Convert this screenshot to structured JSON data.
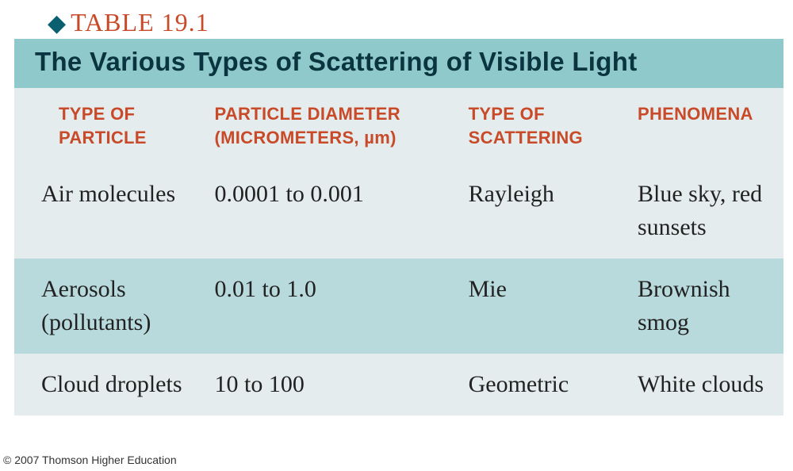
{
  "table_number": "TABLE 19.1",
  "title": "The Various Types of Scattering of Visible Light",
  "columns": {
    "c1a": "TYPE OF",
    "c1b": "PARTICLE",
    "c2a": "PARTICLE DIAMETER",
    "c2b_prefix": "(MICROMETERS, ",
    "c2b_mu": "µ",
    "c2b_suffix": "m)",
    "c3a": "TYPE OF",
    "c3b": "SCATTERING",
    "c4": "PHENOMENA"
  },
  "rows": [
    {
      "particle": "Air molecules",
      "diameter": "0.0001 to 0.001",
      "scattering": "Rayleigh",
      "phenomena": "Blue sky, red sunsets"
    },
    {
      "particle": "Aerosols (pollutants)",
      "diameter": "0.01 to 1.0",
      "scattering": "Mie",
      "phenomena": "Brownish smog"
    },
    {
      "particle": "Cloud droplets",
      "diameter": "10 to 100",
      "scattering": "Geometric",
      "phenomena": "White clouds"
    }
  ],
  "colors": {
    "accent_orange": "#c84a28",
    "header_bg": "#8fc9cc",
    "row_light": "#e4eced",
    "row_alt": "#b8dadd",
    "title_text": "#0a3540"
  },
  "copyright": "© 2007 Thomson Higher Education"
}
